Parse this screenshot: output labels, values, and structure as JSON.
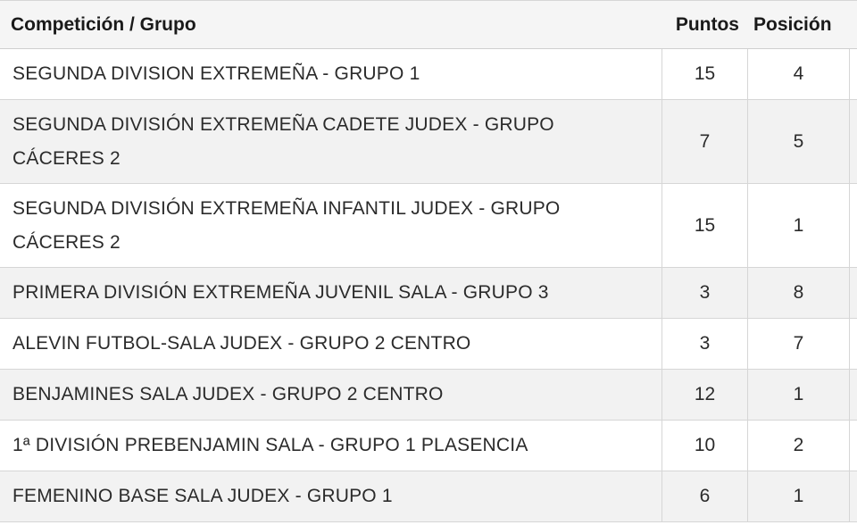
{
  "table": {
    "headers": {
      "competition": "Competición / Grupo",
      "points": "Puntos",
      "position": "Posición"
    },
    "rows": [
      {
        "competition": "SEGUNDA DIVISION EXTREMEÑA - GRUPO 1",
        "points": "15",
        "position": "4"
      },
      {
        "competition": "SEGUNDA DIVISIÓN EXTREMEÑA CADETE JUDEX - GRUPO CÁCERES 2",
        "points": "7",
        "position": "5"
      },
      {
        "competition": "SEGUNDA DIVISIÓN EXTREMEÑA INFANTIL JUDEX - GRUPO CÁCERES 2",
        "points": "15",
        "position": "1"
      },
      {
        "competition": "PRIMERA DIVISIÓN EXTREMEÑA JUVENIL SALA - GRUPO 3",
        "points": "3",
        "position": "8"
      },
      {
        "competition": "ALEVIN FUTBOL-SALA JUDEX - GRUPO 2 CENTRO",
        "points": "3",
        "position": "7"
      },
      {
        "competition": "BENJAMINES SALA JUDEX - GRUPO 2 CENTRO",
        "points": "12",
        "position": "1"
      },
      {
        "competition": "1ª DIVISIÓN PREBENJAMIN SALA - GRUPO 1 PLASENCIA",
        "points": "10",
        "position": "2"
      },
      {
        "competition": "FEMENINO BASE SALA JUDEX - GRUPO 1",
        "points": "6",
        "position": "1"
      }
    ]
  },
  "colors": {
    "header_bg": "#f5f5f5",
    "alt_row_bg": "#f2f2f2",
    "border": "#d6d6d6"
  }
}
